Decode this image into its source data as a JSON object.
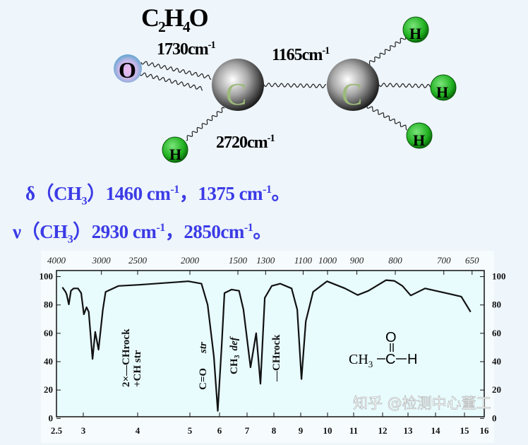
{
  "molecule": {
    "formula": {
      "main": [
        "C",
        "H",
        "O"
      ],
      "subs": [
        "2",
        "4"
      ]
    },
    "atoms": {
      "oxygen": "O",
      "carbon": "C",
      "hydrogen": "H"
    },
    "bond_labels": [
      {
        "value": "1730cm",
        "exp": "-1"
      },
      {
        "value": "1165cm",
        "exp": "-1"
      },
      {
        "value": "2720cm",
        "exp": "-1"
      }
    ],
    "colors": {
      "carbon": "#8a8a8a",
      "hydrogen": "#2eb82e",
      "oxygen": "#7fb8d8",
      "carbon_label": "#9cba7a"
    }
  },
  "notes": [
    {
      "symbol": "δ",
      "group": "CH",
      "sub": "3",
      "v1": "1460 cm",
      "e1": "-1",
      "sep": "，",
      "v2": "1375 cm",
      "e2": "-1",
      "end": "。"
    },
    {
      "symbol": "ν",
      "group": "CH",
      "sub": "3",
      "v1": "2930 cm",
      "e1": "-1",
      "sep": "，",
      "v2": "2850cm",
      "e2": "-1",
      "end": "。"
    }
  ],
  "text_color": "#3b3be6",
  "chart_data": {
    "type": "line",
    "title": "",
    "xlabel": "",
    "ylabel": "",
    "x_unit_axis": "bottom (µm)",
    "bottom_ticks": [
      "2.5",
      "3",
      "4",
      "5",
      "6",
      "7",
      "8",
      "9",
      "10",
      "11",
      "12",
      "13",
      "14",
      "15",
      "16"
    ],
    "top_ticks": [
      "4000",
      "3000",
      "2500",
      "2000",
      "1500",
      "1300",
      "1100",
      "1000",
      "900",
      "800",
      "700",
      "650"
    ],
    "left_ticks": [
      "0",
      "20",
      "40",
      "60",
      "80",
      "100"
    ],
    "right_ticks": [
      "0",
      "20",
      "40",
      "60",
      "80",
      "100"
    ],
    "ylim": [
      0,
      100
    ],
    "xlim": [
      2.5,
      16
    ],
    "grid": false,
    "series": [
      {
        "x": [
          2.61,
          2.67,
          2.69,
          2.73,
          2.77,
          2.82,
          2.9,
          2.96,
          3.01,
          3.06,
          3.1,
          3.17,
          3.22,
          3.28,
          3.36,
          3.41,
          3.65,
          4.03,
          4.97,
          5.39,
          5.6,
          5.81,
          5.94,
          6.08,
          6.18,
          6.44,
          6.71,
          6.87,
          7.13,
          7.34,
          7.5,
          7.66,
          7.92,
          8.24,
          8.66,
          8.87,
          9.03,
          9.19,
          9.46,
          9.98,
          10.67,
          11.14,
          11.51,
          12.14,
          12.46,
          12.78,
          13.1,
          13.62,
          14.36,
          14.89,
          15.31
        ],
        "y": [
          92.5,
          89.2,
          87.5,
          80.4,
          90,
          91.7,
          91.7,
          88.4,
          73.4,
          78.4,
          75.1,
          41.9,
          61,
          48.5,
          76.7,
          89.2,
          93.4,
          94.2,
          96.7,
          95,
          80,
          43.5,
          5.3,
          51.8,
          88.4,
          90.9,
          90,
          76.7,
          36,
          60.1,
          24.4,
          85,
          93.4,
          95,
          91.7,
          76.7,
          27.7,
          68.4,
          89.2,
          96.7,
          91.7,
          87,
          90,
          97.5,
          97,
          93.4,
          86.7,
          91.7,
          88.4,
          85.9,
          75.1
        ]
      }
    ],
    "annotations": {
      "ch_rock_1": "2×—CHrock",
      "ch_rock_2": "+CH  str",
      "co_str_1": "C=O",
      "co_str_2": "str",
      "ch3_def_1": "CH",
      "ch3_def_sub": "3",
      "ch3_def_2": "def",
      "ch_rock": "—CHrock"
    },
    "structure": {
      "left": "CH",
      "left_sub": "3",
      "center": "C",
      "top": "O",
      "right": "H"
    },
    "watermark": "知乎 @检测中心董工"
  }
}
